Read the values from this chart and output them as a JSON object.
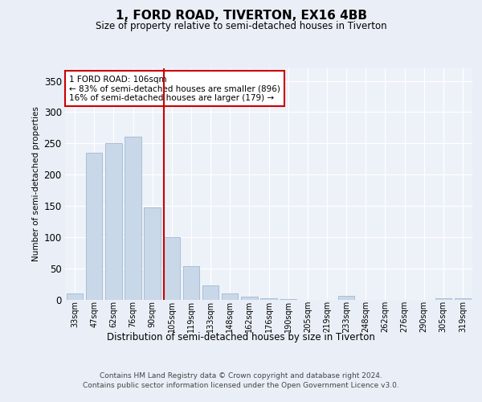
{
  "title": "1, FORD ROAD, TIVERTON, EX16 4BB",
  "subtitle": "Size of property relative to semi-detached houses in Tiverton",
  "xlabel": "Distribution of semi-detached houses by size in Tiverton",
  "ylabel": "Number of semi-detached properties",
  "categories": [
    "33sqm",
    "47sqm",
    "62sqm",
    "76sqm",
    "90sqm",
    "105sqm",
    "119sqm",
    "133sqm",
    "148sqm",
    "162sqm",
    "176sqm",
    "190sqm",
    "205sqm",
    "219sqm",
    "233sqm",
    "248sqm",
    "262sqm",
    "276sqm",
    "290sqm",
    "305sqm",
    "319sqm"
  ],
  "values": [
    10,
    235,
    250,
    260,
    148,
    100,
    53,
    23,
    10,
    5,
    2,
    1,
    0,
    0,
    6,
    0,
    0,
    0,
    0,
    2,
    2
  ],
  "bar_color": "#c8d8e8",
  "bar_edge_color": "#a0b8d0",
  "vline_x_index": 5,
  "vline_color": "#cc0000",
  "annotation_text": "1 FORD ROAD: 106sqm\n← 83% of semi-detached houses are smaller (896)\n16% of semi-detached houses are larger (179) →",
  "annotation_box_color": "#ffffff",
  "annotation_box_edge": "#cc0000",
  "ylim": [
    0,
    370
  ],
  "yticks": [
    0,
    50,
    100,
    150,
    200,
    250,
    300,
    350
  ],
  "footer_line1": "Contains HM Land Registry data © Crown copyright and database right 2024.",
  "footer_line2": "Contains public sector information licensed under the Open Government Licence v3.0.",
  "bg_color": "#eaeff7",
  "plot_bg_color": "#edf1f8"
}
